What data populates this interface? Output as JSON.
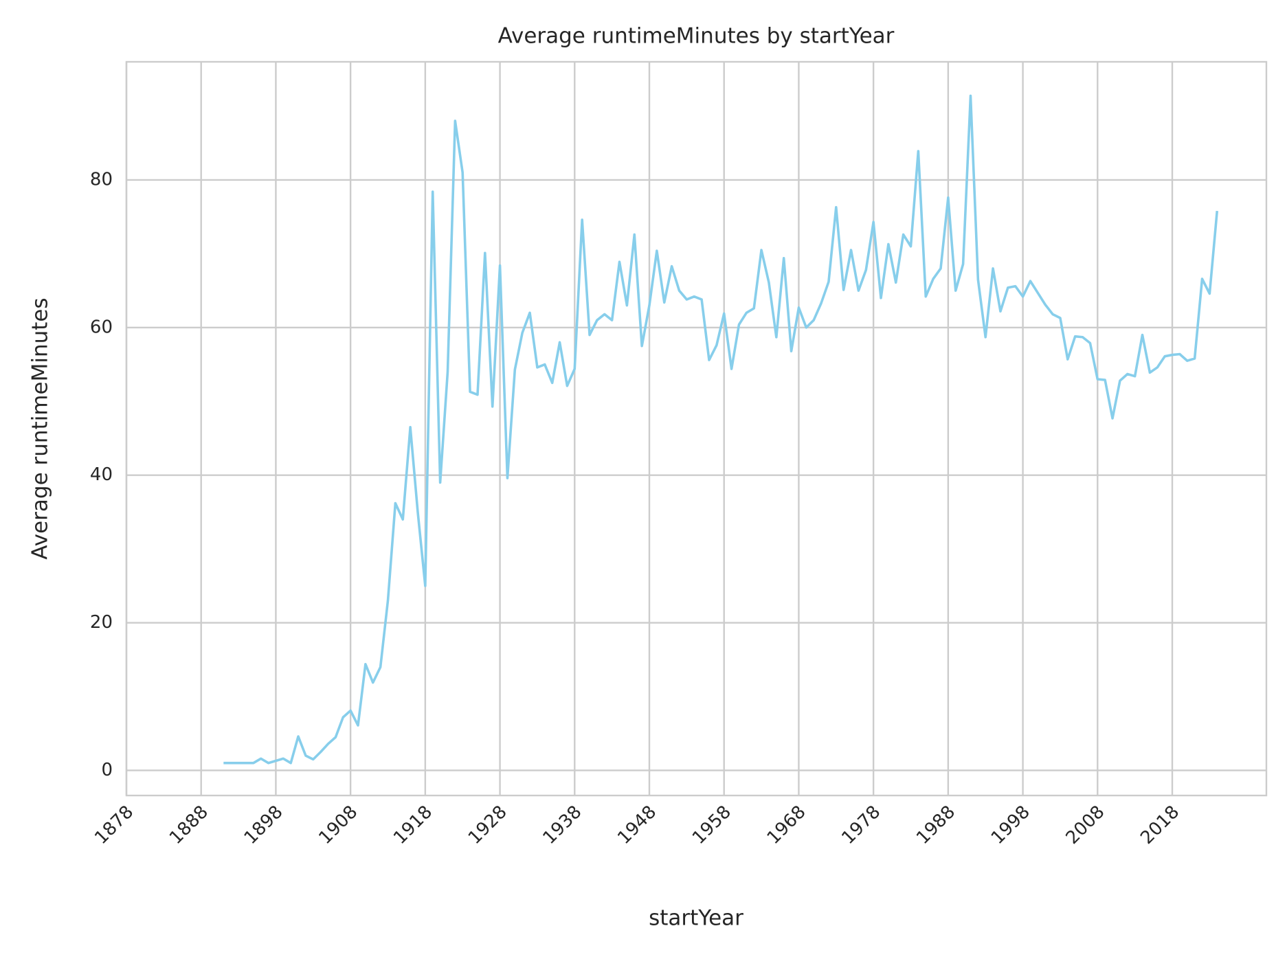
{
  "chart_data": {
    "type": "line",
    "title": "Average runtimeMinutes by startYear",
    "x_label": "startYear",
    "y_label": "Average runtimeMinutes",
    "x": [
      1891,
      1892,
      1893,
      1894,
      1895,
      1896,
      1897,
      1898,
      1899,
      1900,
      1901,
      1902,
      1903,
      1904,
      1905,
      1906,
      1907,
      1908,
      1909,
      1910,
      1911,
      1912,
      1913,
      1914,
      1915,
      1916,
      1917,
      1918,
      1919,
      1920,
      1921,
      1922,
      1923,
      1924,
      1925,
      1926,
      1927,
      1928,
      1929,
      1930,
      1931,
      1932,
      1933,
      1934,
      1935,
      1936,
      1937,
      1938,
      1939,
      1940,
      1941,
      1942,
      1943,
      1944,
      1945,
      1946,
      1947,
      1948,
      1949,
      1950,
      1951,
      1952,
      1953,
      1954,
      1955,
      1956,
      1957,
      1958,
      1959,
      1960,
      1961,
      1962,
      1963,
      1964,
      1965,
      1966,
      1967,
      1968,
      1969,
      1970,
      1971,
      1972,
      1973,
      1974,
      1975,
      1976,
      1977,
      1978,
      1979,
      1980,
      1981,
      1982,
      1983,
      1984,
      1985,
      1986,
      1987,
      1988,
      1989,
      1990,
      1991,
      1992,
      1993,
      1994,
      1995,
      1996,
      1997,
      1998,
      1999,
      2000,
      2001,
      2002,
      2003,
      2004,
      2005,
      2006,
      2007,
      2008,
      2009,
      2010,
      2011,
      2012,
      2013,
      2014,
      2015,
      2016,
      2017,
      2018,
      2019,
      2020,
      2021,
      2022,
      2023,
      2024
    ],
    "series": [
      {
        "color": "#87ceeb",
        "values": [
          1.0,
          1.0,
          1.0,
          1.0,
          1.0,
          1.6,
          1.0,
          1.3,
          1.6,
          1.0,
          4.6,
          2.0,
          1.5,
          2.5,
          3.6,
          4.5,
          7.2,
          8.1,
          6.1,
          14.4,
          11.9,
          14.0,
          23.0,
          36.2,
          34.0,
          46.5,
          35.0,
          25.0,
          78.4,
          39.0,
          54.0,
          88.0,
          81.0,
          51.3,
          50.9,
          70.1,
          49.3,
          68.4,
          39.6,
          54.3,
          59.3,
          62.0,
          54.6,
          55.0,
          52.5,
          58.0,
          52.1,
          54.4,
          74.6,
          59.0,
          61.0,
          61.8,
          61.0,
          68.9,
          63.0,
          72.6,
          57.5,
          63.0,
          70.4,
          63.4,
          68.3,
          65.0,
          63.8,
          64.2,
          63.8,
          55.6,
          57.6,
          61.9,
          54.4,
          60.4,
          62.0,
          62.6,
          70.5,
          66.1,
          58.7,
          69.4,
          56.8,
          62.7,
          60.0,
          61.0,
          63.3,
          66.2,
          76.3,
          65.1,
          70.5,
          65.0,
          67.8,
          74.3,
          64.0,
          71.3,
          66.1,
          72.6,
          71.0,
          83.9,
          64.2,
          66.6,
          68.0,
          77.6,
          65.0,
          68.6,
          91.4,
          66.5,
          58.7,
          68.0,
          62.2,
          65.4,
          65.6,
          64.2,
          66.3,
          64.7,
          63.1,
          61.8,
          61.3,
          55.7,
          58.8,
          58.7,
          57.9,
          53.0,
          52.9,
          47.7,
          52.8,
          53.7,
          53.4,
          59.0,
          53.9,
          54.6,
          56.1,
          56.3,
          56.4,
          55.5,
          55.8,
          66.6,
          64.6,
          75.8
        ]
      }
    ],
    "xlim": [
      1878,
      2030.6
    ],
    "ylim": [
      -3.4,
      96.0
    ],
    "xticks": [
      1878,
      1888,
      1898,
      1908,
      1918,
      1928,
      1938,
      1948,
      1958,
      1968,
      1978,
      1988,
      1998,
      2008,
      2018
    ],
    "yticks": [
      0,
      20,
      40,
      60,
      80
    ],
    "grid": true
  }
}
